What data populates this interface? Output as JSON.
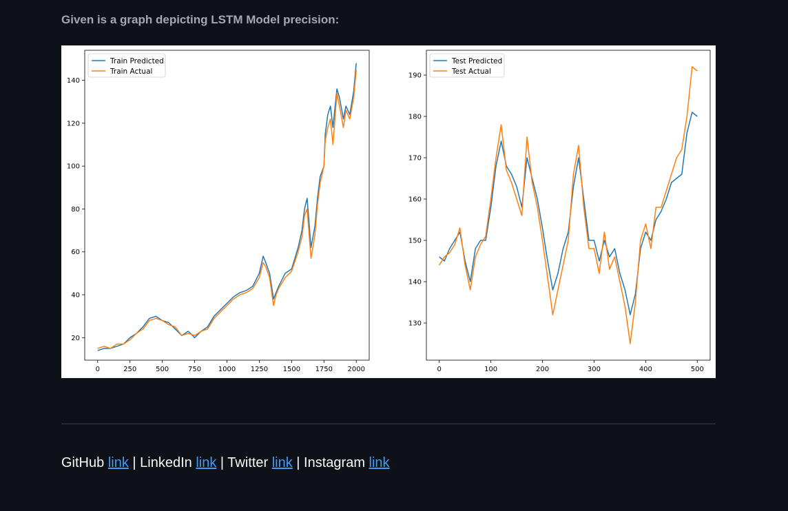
{
  "caption": "Given is a graph depicting LSTM Model precision:",
  "colors": {
    "background": "#0e1117",
    "predicted": "#1f77b4",
    "actual": "#ff7f0e",
    "link": "#3f9cf5"
  },
  "chart_data": [
    {
      "type": "line",
      "xlim": [
        -100,
        2100
      ],
      "ylim": [
        9.5,
        154
      ],
      "xticks": [
        "0",
        "250",
        "500",
        "750",
        "1000",
        "1250",
        "1500",
        "1750",
        "2000"
      ],
      "yticks": [
        "20",
        "40",
        "60",
        "80",
        "100",
        "120",
        "140"
      ],
      "legend_position": "top-left",
      "series": [
        {
          "name": "Train Predicted",
          "color": "#1f77b4",
          "x": [
            0,
            50,
            100,
            150,
            200,
            250,
            300,
            350,
            400,
            450,
            500,
            550,
            600,
            650,
            700,
            750,
            800,
            850,
            900,
            950,
            1000,
            1050,
            1100,
            1150,
            1200,
            1250,
            1280,
            1300,
            1330,
            1360,
            1380,
            1400,
            1450,
            1500,
            1550,
            1580,
            1600,
            1620,
            1650,
            1680,
            1700,
            1720,
            1750,
            1760,
            1780,
            1800,
            1820,
            1850,
            1870,
            1900,
            1920,
            1950,
            1980,
            2000
          ],
          "y": [
            14,
            15,
            15,
            16,
            17,
            20,
            22,
            25,
            29,
            30,
            28,
            27,
            24,
            21,
            23,
            20,
            23,
            25,
            30,
            33,
            36,
            39,
            41,
            42,
            44,
            50,
            58,
            55,
            50,
            38,
            41,
            44,
            50,
            52,
            62,
            70,
            80,
            85,
            62,
            72,
            85,
            95,
            100,
            115,
            124,
            128,
            118,
            136,
            132,
            122,
            128,
            124,
            135,
            148
          ]
        },
        {
          "name": "Train Actual",
          "color": "#ff7f0e",
          "x": [
            0,
            50,
            100,
            150,
            200,
            250,
            300,
            350,
            400,
            450,
            500,
            550,
            600,
            650,
            700,
            750,
            800,
            850,
            900,
            950,
            1000,
            1050,
            1100,
            1150,
            1200,
            1250,
            1280,
            1300,
            1330,
            1360,
            1380,
            1400,
            1450,
            1500,
            1550,
            1580,
            1600,
            1620,
            1650,
            1680,
            1700,
            1720,
            1750,
            1760,
            1780,
            1800,
            1820,
            1850,
            1870,
            1900,
            1920,
            1950,
            1980,
            2000
          ],
          "y": [
            15,
            16,
            15,
            17,
            17,
            19,
            22,
            24,
            28,
            29,
            28,
            26,
            25,
            21,
            22,
            21,
            23,
            24,
            29,
            32,
            35,
            38,
            40,
            41,
            43,
            48,
            55,
            53,
            48,
            35,
            40,
            43,
            48,
            51,
            60,
            67,
            77,
            80,
            57,
            68,
            82,
            92,
            100,
            112,
            118,
            122,
            110,
            134,
            128,
            118,
            126,
            122,
            132,
            145
          ]
        }
      ]
    },
    {
      "type": "line",
      "xlim": [
        -25,
        525
      ],
      "ylim": [
        121,
        196
      ],
      "xticks": [
        "0",
        "100",
        "200",
        "300",
        "400",
        "500"
      ],
      "yticks": [
        "130",
        "140",
        "150",
        "160",
        "170",
        "180",
        "190"
      ],
      "legend_position": "top-left",
      "series": [
        {
          "name": "Test Predicted",
          "color": "#1f77b4",
          "x": [
            0,
            10,
            20,
            30,
            40,
            50,
            60,
            70,
            80,
            90,
            100,
            110,
            120,
            130,
            140,
            150,
            160,
            170,
            180,
            190,
            200,
            210,
            220,
            230,
            240,
            250,
            260,
            270,
            280,
            290,
            300,
            310,
            320,
            330,
            340,
            350,
            360,
            370,
            380,
            390,
            400,
            410,
            420,
            430,
            440,
            450,
            460,
            470,
            480,
            490,
            500
          ],
          "y": [
            146,
            145,
            148,
            150,
            152,
            145,
            140,
            148,
            150,
            150,
            158,
            168,
            174,
            168,
            166,
            163,
            158,
            170,
            165,
            160,
            153,
            145,
            138,
            142,
            148,
            152,
            163,
            170,
            160,
            150,
            150,
            145,
            150,
            146,
            148,
            142,
            138,
            132,
            137,
            148,
            152,
            150,
            155,
            157,
            160,
            164,
            165,
            166,
            176,
            181,
            180
          ]
        },
        {
          "name": "Test Actual",
          "color": "#ff7f0e",
          "x": [
            0,
            10,
            20,
            30,
            40,
            50,
            60,
            70,
            80,
            90,
            100,
            110,
            120,
            130,
            140,
            150,
            160,
            170,
            180,
            190,
            200,
            210,
            220,
            230,
            240,
            250,
            260,
            270,
            280,
            290,
            300,
            310,
            320,
            330,
            340,
            350,
            360,
            370,
            380,
            390,
            400,
            410,
            420,
            430,
            440,
            450,
            460,
            470,
            480,
            490,
            500
          ],
          "y": [
            144,
            146,
            147,
            149,
            153,
            144,
            138,
            146,
            149,
            151,
            160,
            170,
            178,
            167,
            164,
            160,
            156,
            175,
            164,
            158,
            150,
            141,
            132,
            138,
            144,
            150,
            166,
            173,
            158,
            148,
            148,
            142,
            152,
            143,
            146,
            140,
            134,
            125,
            135,
            150,
            154,
            148,
            158,
            158,
            162,
            166,
            170,
            172,
            180,
            192,
            191
          ]
        }
      ]
    }
  ],
  "footer": {
    "github_label": "GitHub ",
    "linkedin_label": " | LinkedIn ",
    "twitter_label": " | Twitter ",
    "instagram_label": " | Instagram ",
    "link_text": "link"
  }
}
